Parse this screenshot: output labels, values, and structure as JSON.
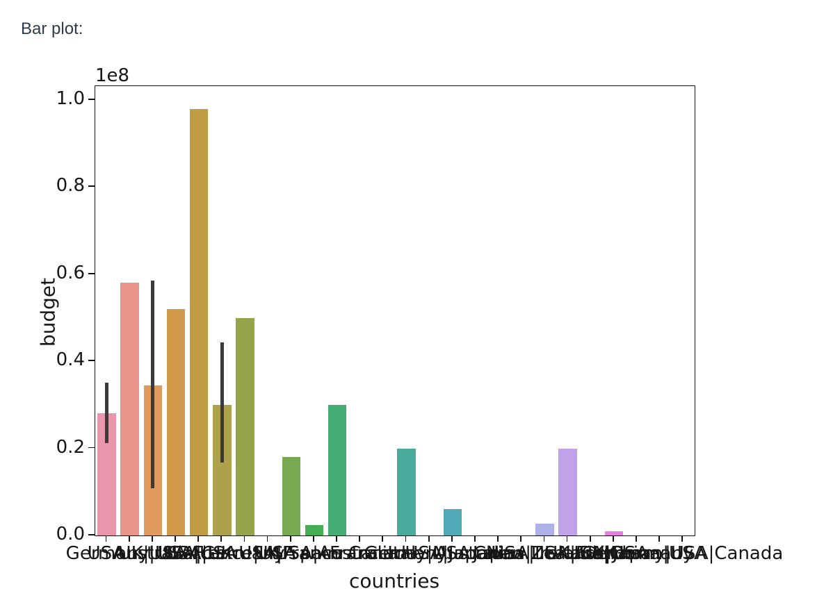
{
  "page": {
    "heading": "Bar plot:",
    "heading_color": "#2e3a47",
    "background": "#ffffff"
  },
  "chart_data": {
    "type": "bar",
    "title": "",
    "xlabel": "countries",
    "ylabel": "budget",
    "offset_text": "1e8",
    "y_unit_multiplier": 100000000,
    "ylim": [
      0,
      1.03
    ],
    "y_tick_labels": [
      "0.0",
      "0.2",
      "0.4",
      "0.6",
      "0.8",
      "1.0"
    ],
    "y_tick_values": [
      0.0,
      0.2,
      0.4,
      0.6,
      0.8,
      1.0
    ],
    "grid": false,
    "legend": false,
    "categories": [
      "USA",
      "Germany|USA",
      "UK|USA",
      "Australia|USA",
      "USA|UK",
      "USA|Germany",
      "France|USA",
      "UK",
      "USA|France",
      "Spain",
      "USA|Australia",
      "France",
      "Canada",
      "Germany",
      "Italy|USA",
      "USA|Japan",
      "Australia",
      "Japan",
      "China|USA",
      "USA|Ireland",
      "New Zealand|USA",
      "UK|France",
      "USA|China",
      "UK|Germany",
      "Japan|USA",
      "Germany|USA|Canada"
    ],
    "values": [
      0.28,
      0.58,
      0.345,
      0.52,
      0.98,
      0.3,
      0.5,
      0,
      0.18,
      0.024,
      0.3,
      0,
      0,
      0.2,
      0,
      0.06,
      0,
      0,
      0,
      0.027,
      0.2,
      0,
      0.01,
      0,
      0,
      0
    ],
    "bar_colors": [
      "#e896ac",
      "#e8968a",
      "#e09a5e",
      "#d09a4a",
      "#c09c45",
      "#aba24b",
      "#96a34a",
      "#86a64e",
      "#76a952",
      "#45ad53",
      "#44ad75",
      "#45ad86",
      "#47ac92",
      "#4aab9c",
      "#4daaa9",
      "#51a8b7",
      "#59a5cd",
      "#7ba4e2",
      "#98abe9",
      "#aeb0e8",
      "#c0a2e8",
      "#d49be6",
      "#e87fdf",
      "#ea82cf",
      "#e989bd",
      "#e890b4"
    ],
    "error_bars": [
      {
        "index": 0,
        "lo": 0.212,
        "hi": 0.351
      },
      {
        "index": 2,
        "lo": 0.108,
        "hi": 0.585
      },
      {
        "index": 5,
        "lo": 0.167,
        "hi": 0.443
      }
    ],
    "error_bar_color": "#3a3a3a"
  }
}
